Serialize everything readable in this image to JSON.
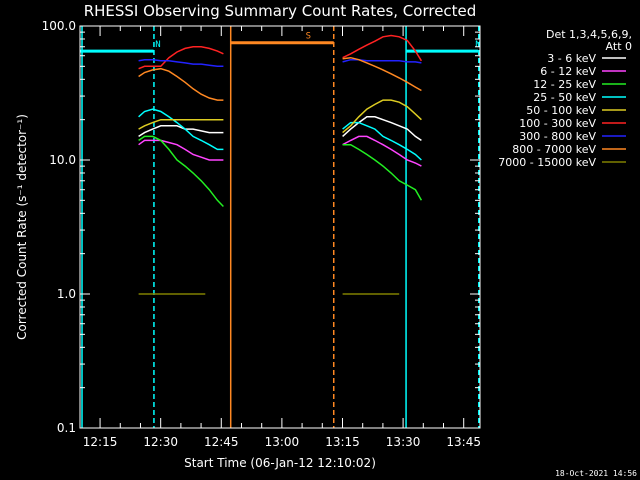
{
  "title": "RHESSI Observing Summary Count Rates, Corrected",
  "chart_data": {
    "type": "line",
    "title": "RHESSI Observing Summary Count Rates, Corrected",
    "xlabel": "Start Time (06-Jan-12 12:10:02)",
    "ylabel": "Corrected Count Rate (s⁻¹ detector⁻¹)",
    "x_unit": "minutes after 12:10:02",
    "xlim": [
      0,
      99
    ],
    "ylim": [
      0.1,
      100
    ],
    "y_scale": "log",
    "x_ticks": [
      "12:15",
      "12:30",
      "12:45",
      "13:00",
      "13:15",
      "13:30",
      "13:45"
    ],
    "y_ticks": [
      "0.1",
      "1.0",
      "10.0",
      "100.0"
    ],
    "legend_header": [
      "Det 1,3,4,5,6,9,",
      "Att 0"
    ],
    "legend_position": "top-right",
    "series": [
      {
        "name": "3 - 6 keV",
        "color": "#ffffff",
        "segments": [
          {
            "x": [
              14.5,
              16,
              18,
              20,
              22,
              24,
              26,
              28,
              30,
              32,
              34,
              35.5
            ],
            "y": [
              15,
              16,
              17,
              18,
              18,
              18,
              17,
              17,
              16.5,
              16,
              16,
              16
            ]
          },
          {
            "x": [
              65,
              67,
              69,
              71,
              73,
              75,
              77,
              79,
              81,
              83,
              84.5
            ],
            "y": [
              15,
              17,
              19,
              21,
              21,
              20,
              19,
              18,
              17,
              15,
              14
            ]
          }
        ]
      },
      {
        "name": "6 - 12 keV",
        "color": "#ff44ff",
        "segments": [
          {
            "x": [
              14.5,
              16,
              18,
              20,
              22,
              24,
              26,
              28,
              30,
              32,
              34,
              35.5
            ],
            "y": [
              13,
              14,
              14,
              14,
              13.5,
              13,
              12,
              11,
              10.5,
              10,
              10,
              10
            ]
          },
          {
            "x": [
              65,
              67,
              69,
              71,
              73,
              75,
              77,
              79,
              81,
              83,
              84.5
            ],
            "y": [
              13,
              14,
              15,
              15,
              14,
              13,
              12,
              11,
              10,
              9.5,
              9
            ]
          }
        ]
      },
      {
        "name": "12 - 25 keV",
        "color": "#22ee22",
        "segments": [
          {
            "x": [
              14.5,
              16,
              18,
              20,
              22,
              24,
              26,
              28,
              30,
              32,
              34,
              35.5
            ],
            "y": [
              14,
              15,
              15,
              14,
              12,
              10,
              9,
              8,
              7,
              6,
              5,
              4.5
            ]
          },
          {
            "x": [
              65,
              67,
              69,
              71,
              73,
              75,
              77,
              79,
              81,
              83,
              84.5
            ],
            "y": [
              13,
              13,
              12,
              11,
              10,
              9,
              8,
              7,
              6.5,
              6,
              5
            ]
          }
        ]
      },
      {
        "name": "25 - 50 keV",
        "color": "#00ffff",
        "segments": [
          {
            "x": [
              14.5,
              16,
              18,
              20,
              22,
              24,
              26,
              28,
              30,
              32,
              34,
              35.5
            ],
            "y": [
              21,
              23,
              24,
              23,
              21,
              19,
              17,
              15,
              14,
              13,
              12,
              12
            ]
          },
          {
            "x": [
              65,
              67,
              69,
              71,
              73,
              75,
              77,
              79,
              81,
              83,
              84.5
            ],
            "y": [
              17,
              19,
              19,
              18,
              17,
              15,
              14,
              13,
              12,
              11,
              10
            ]
          }
        ]
      },
      {
        "name": "50 - 100 keV",
        "color": "#ddcc22",
        "segments": [
          {
            "x": [
              14.5,
              16,
              18,
              20,
              22,
              24,
              26,
              28,
              30,
              32,
              34,
              35.5
            ],
            "y": [
              17,
              18,
              19,
              20,
              20,
              20,
              20,
              20,
              20,
              20,
              20,
              20
            ]
          },
          {
            "x": [
              65,
              67,
              69,
              71,
              73,
              75,
              77,
              79,
              81,
              83,
              84.5
            ],
            "y": [
              16,
              18,
              21,
              24,
              26,
              28,
              28,
              27,
              25,
              22,
              20
            ]
          }
        ]
      },
      {
        "name": "100 - 300 keV",
        "color": "#ff2222",
        "segments": [
          {
            "x": [
              14.5,
              16,
              18,
              20,
              22,
              24,
              26,
              28,
              30,
              32,
              34,
              35.5
            ],
            "y": [
              48,
              50,
              50,
              50,
              58,
              64,
              68,
              70,
              70,
              68,
              65,
              62
            ]
          },
          {
            "x": [
              65,
              67,
              69,
              71,
              73,
              75,
              77,
              79,
              81,
              83,
              84.5
            ],
            "y": [
              58,
              62,
              67,
              72,
              77,
              83,
              85,
              83,
              78,
              65,
              55
            ]
          }
        ]
      },
      {
        "name": "300 - 800 keV",
        "color": "#2222ff",
        "segments": [
          {
            "x": [
              14.5,
              16,
              18,
              20,
              22,
              24,
              26,
              28,
              30,
              32,
              34,
              35.5
            ],
            "y": [
              55,
              56,
              56,
              55,
              55,
              54,
              53,
              52,
              52,
              51,
              50,
              50
            ]
          },
          {
            "x": [
              65,
              67,
              69,
              71,
              73,
              75,
              77,
              79,
              81,
              83,
              84.5
            ],
            "y": [
              54,
              56,
              56,
              55,
              55,
              55,
              55,
              55,
              54,
              54,
              53
            ]
          }
        ]
      },
      {
        "name": "800 - 7000 keV",
        "color": "#ff8822",
        "segments": [
          {
            "x": [
              14.5,
              16,
              18,
              20,
              22,
              24,
              26,
              28,
              30,
              32,
              34,
              35.5
            ],
            "y": [
              42,
              45,
              47,
              48,
              46,
              42,
              38,
              34,
              31,
              29,
              28,
              28
            ]
          },
          {
            "x": [
              65,
              67,
              69,
              71,
              73,
              75,
              77,
              79,
              81,
              83,
              84.5
            ],
            "y": [
              57,
              58,
              56,
              53,
              50,
              47,
              44,
              41,
              38,
              35,
              33
            ]
          }
        ]
      },
      {
        "name": "7000 - 15000 keV",
        "color": "#808000",
        "segments": [
          {
            "x": [
              14.5,
              17,
              19,
              21,
              23,
              25,
              27,
              29,
              31
            ],
            "y": [
              1,
              1,
              1,
              1,
              1,
              1,
              1,
              1,
              1
            ]
          },
          {
            "x": [
              65,
              67,
              69,
              71,
              73,
              75,
              77,
              79
            ],
            "y": [
              1,
              1,
              1,
              1,
              1,
              1,
              1,
              1
            ]
          }
        ]
      }
    ],
    "flags": [
      {
        "label": "N",
        "color": "#00ffff",
        "start": 0,
        "end": 18.2,
        "level": 65
      },
      {
        "label": "N",
        "color": "#00ffff",
        "start": 80.8,
        "end": 98.5,
        "level": 65
      },
      {
        "label": "S",
        "color": "#ff8822",
        "start": 37.2,
        "end": 62.8,
        "level": 75
      }
    ],
    "vlines": [
      {
        "x": 0.5,
        "color": "#00ffff",
        "style": "solid"
      },
      {
        "x": 18.3,
        "color": "#00ffff",
        "style": "dashed"
      },
      {
        "x": 37.3,
        "color": "#ff8822",
        "style": "solid"
      },
      {
        "x": 62.8,
        "color": "#ff8822",
        "style": "dashed"
      },
      {
        "x": 80.7,
        "color": "#00ffff",
        "style": "solid"
      },
      {
        "x": 98.7,
        "color": "#00ffff",
        "style": "dashed"
      }
    ]
  },
  "timestamp": "18-Oct-2021 14:56"
}
